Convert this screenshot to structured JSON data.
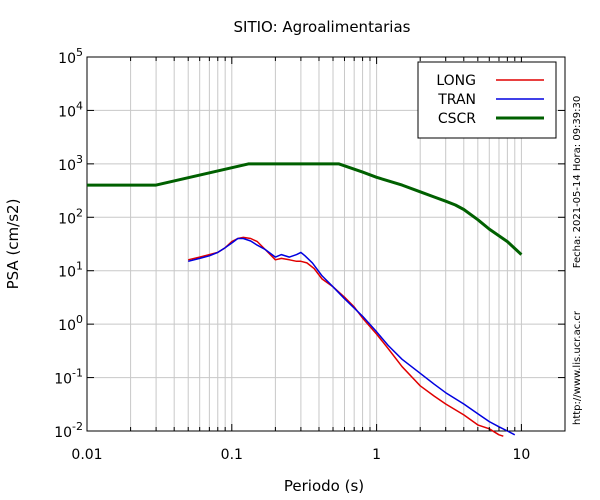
{
  "chart_data": {
    "type": "line",
    "title": "SITIO: Agroalimentarias",
    "xlabel": "Periodo (s)",
    "ylabel": "PSA (cm/s2)",
    "x_scale": "log",
    "y_scale": "log",
    "xlim": [
      0.01,
      20
    ],
    "ylim": [
      0.01,
      100000
    ],
    "x_ticks": [
      {
        "value": 0.01,
        "label": "0.01"
      },
      {
        "value": 0.1,
        "label": "0.1"
      },
      {
        "value": 1,
        "label": "1"
      },
      {
        "value": 10,
        "label": "10"
      }
    ],
    "y_ticks": [
      {
        "value": 0.01,
        "base": "10",
        "exp": "-2"
      },
      {
        "value": 0.1,
        "base": "10",
        "exp": "-1"
      },
      {
        "value": 1,
        "base": "10",
        "exp": "0"
      },
      {
        "value": 10,
        "base": "10",
        "exp": "1"
      },
      {
        "value": 100,
        "base": "10",
        "exp": "2"
      },
      {
        "value": 1000,
        "base": "10",
        "exp": "3"
      },
      {
        "value": 10000,
        "base": "10",
        "exp": "4"
      },
      {
        "value": 100000,
        "base": "10",
        "exp": "5"
      }
    ],
    "grid": true,
    "legend_position": "top-right",
    "series": [
      {
        "name": "LONG",
        "color": "#e00000",
        "x": [
          0.05,
          0.06,
          0.07,
          0.08,
          0.09,
          0.1,
          0.11,
          0.12,
          0.135,
          0.15,
          0.17,
          0.2,
          0.22,
          0.25,
          0.28,
          0.3,
          0.33,
          0.37,
          0.42,
          0.5,
          0.6,
          0.7,
          0.8,
          1.0,
          1.2,
          1.5,
          2.0,
          2.5,
          3.0,
          4.0,
          5.0,
          6.0,
          7.0,
          7.5
        ],
        "y": [
          16,
          18,
          20,
          22,
          27,
          35,
          40,
          42,
          40,
          35,
          25,
          16,
          17,
          16,
          15,
          15,
          14,
          11,
          7,
          5,
          3.2,
          2.1,
          1.3,
          0.65,
          0.35,
          0.16,
          0.07,
          0.045,
          0.032,
          0.02,
          0.013,
          0.011,
          0.0085,
          0.008
        ]
      },
      {
        "name": "TRAN",
        "color": "#0000e0",
        "x": [
          0.05,
          0.06,
          0.07,
          0.08,
          0.09,
          0.1,
          0.11,
          0.12,
          0.135,
          0.15,
          0.17,
          0.2,
          0.22,
          0.25,
          0.28,
          0.3,
          0.32,
          0.36,
          0.42,
          0.5,
          0.6,
          0.7,
          0.8,
          1.0,
          1.2,
          1.5,
          2.0,
          2.5,
          3.0,
          4.0,
          5.0,
          6.0,
          7.0,
          8.0,
          9.0
        ],
        "y": [
          15,
          17,
          19,
          22,
          27,
          33,
          40,
          40,
          36,
          30,
          25,
          18,
          20,
          18,
          20,
          22,
          19,
          14,
          8,
          5,
          3,
          2,
          1.4,
          0.72,
          0.4,
          0.22,
          0.12,
          0.075,
          0.052,
          0.032,
          0.021,
          0.015,
          0.012,
          0.01,
          0.0085
        ]
      },
      {
        "name": "CSCR",
        "color": "#006000",
        "x": [
          0.01,
          0.03,
          0.13,
          0.55,
          0.8,
          1.0,
          1.5,
          2.0,
          2.5,
          3.0,
          3.5,
          4.0,
          5.0,
          6.0,
          8.0,
          10.0
        ],
        "y": [
          400,
          400,
          1000,
          1000,
          700,
          560,
          400,
          300,
          240,
          200,
          170,
          140,
          90,
          60,
          35,
          20
        ]
      }
    ]
  },
  "side_notes": {
    "timestamp": "Fecha: 2021-05-14 Hora: 09:39:30",
    "url": "http://www.lis.ucr.ac.cr"
  }
}
